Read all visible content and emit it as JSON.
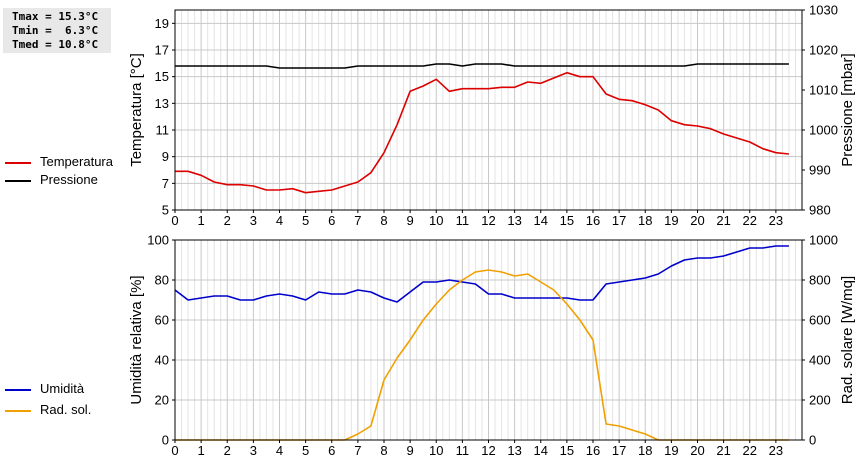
{
  "stats": [
    "Tmax = 15.3°C",
    "Tmin =  6.3°C",
    "Tmed = 10.8°C"
  ],
  "colors": {
    "temperature": "#dd0000",
    "pressure": "#000000",
    "humidity": "#0000cc",
    "radiation": "#f0a000",
    "grid": "#c8c8c8"
  },
  "legends": {
    "top": [
      {
        "name": "Temperatura",
        "color": "#dd0000"
      },
      {
        "name": "Pressione",
        "color": "#000000"
      }
    ],
    "bottom": [
      {
        "name": "Umidità",
        "color": "#0000cc"
      },
      {
        "name": "Rad. sol.",
        "color": "#f0a000"
      }
    ]
  },
  "chart_data": [
    {
      "type": "line",
      "x_ticks": [
        "0",
        "1",
        "2",
        "3",
        "4",
        "5",
        "6",
        "7",
        "8",
        "9",
        "10",
        "11",
        "12",
        "13",
        "14",
        "15",
        "16",
        "17",
        "18",
        "19",
        "20",
        "21",
        "22",
        "23"
      ],
      "xlim": [
        0,
        24
      ],
      "ylabel": "Temperatura [°C]",
      "ylim": [
        5,
        20
      ],
      "y_ticks": [
        5,
        7,
        9,
        11,
        13,
        15,
        17,
        19
      ],
      "y2label": "Pressione [mbar]",
      "y2lim": [
        980,
        1030
      ],
      "y2_ticks": [
        980,
        990,
        1000,
        1010,
        1020,
        1030
      ],
      "grid": true,
      "legend": "left",
      "series": [
        {
          "name": "Temperatura",
          "axis": "left",
          "x": [
            0,
            0.5,
            1,
            1.5,
            2,
            2.5,
            3,
            3.5,
            4,
            4.5,
            5,
            5.5,
            6,
            6.5,
            7,
            7.5,
            8,
            8.5,
            9,
            9.5,
            10,
            10.5,
            11,
            11.5,
            12,
            12.5,
            13,
            13.5,
            14,
            14.5,
            15,
            15.5,
            16,
            16.5,
            17,
            17.5,
            18,
            18.5,
            19,
            19.5,
            20,
            20.5,
            21,
            21.5,
            22,
            22.5,
            23,
            23.5
          ],
          "values": [
            7.9,
            7.9,
            7.6,
            7.1,
            6.9,
            6.9,
            6.8,
            6.5,
            6.5,
            6.6,
            6.3,
            6.4,
            6.5,
            6.8,
            7.1,
            7.8,
            9.3,
            11.4,
            13.9,
            14.3,
            14.8,
            13.9,
            14.1,
            14.1,
            14.1,
            14.2,
            14.2,
            14.6,
            14.5,
            14.9,
            15.3,
            15.0,
            15.0,
            13.7,
            13.3,
            13.2,
            12.9,
            12.5,
            11.7,
            11.4,
            11.3,
            11.1,
            10.7,
            10.4,
            10.1,
            9.6,
            9.3,
            9.2
          ]
        },
        {
          "name": "Pressione",
          "axis": "right",
          "x": [
            0,
            0.5,
            1,
            1.5,
            2,
            2.5,
            3,
            3.5,
            4,
            4.5,
            5,
            5.5,
            6,
            6.5,
            7,
            7.5,
            8,
            8.5,
            9,
            9.5,
            10,
            10.5,
            11,
            11.5,
            12,
            12.5,
            13,
            13.5,
            14,
            14.5,
            15,
            15.5,
            16,
            16.5,
            17,
            17.5,
            18,
            18.5,
            19,
            19.5,
            20,
            20.5,
            21,
            21.5,
            22,
            22.5,
            23,
            23.5
          ],
          "values": [
            1016,
            1016,
            1016,
            1016,
            1016,
            1016,
            1016,
            1016,
            1015.5,
            1015.5,
            1015.5,
            1015.5,
            1015.5,
            1015.5,
            1016,
            1016,
            1016,
            1016,
            1016,
            1016,
            1016.5,
            1016.5,
            1016,
            1016.5,
            1016.5,
            1016.5,
            1016,
            1016,
            1016,
            1016,
            1016,
            1016,
            1016,
            1016,
            1016,
            1016,
            1016,
            1016,
            1016,
            1016,
            1016.5,
            1016.5,
            1016.5,
            1016.5,
            1016.5,
            1016.5,
            1016.5,
            1016.5
          ]
        }
      ]
    },
    {
      "type": "line",
      "x_ticks": [
        "0",
        "1",
        "2",
        "3",
        "4",
        "5",
        "6",
        "7",
        "8",
        "9",
        "10",
        "11",
        "12",
        "13",
        "14",
        "15",
        "16",
        "17",
        "18",
        "19",
        "20",
        "21",
        "22",
        "23"
      ],
      "xlim": [
        0,
        24
      ],
      "ylabel": "Umidità relativa [%]",
      "ylim": [
        0,
        100
      ],
      "y_ticks": [
        0,
        20,
        40,
        60,
        80,
        100
      ],
      "y2label": "Rad. solare [W/mq]",
      "y2lim": [
        0,
        1000
      ],
      "y2_ticks": [
        0,
        200,
        400,
        600,
        800,
        1000
      ],
      "grid": true,
      "legend": "left",
      "series": [
        {
          "name": "Umidità",
          "axis": "left",
          "x": [
            0,
            0.5,
            1,
            1.5,
            2,
            2.5,
            3,
            3.5,
            4,
            4.5,
            5,
            5.5,
            6,
            6.5,
            7,
            7.5,
            8,
            8.5,
            9,
            9.5,
            10,
            10.5,
            11,
            11.5,
            12,
            12.5,
            13,
            13.5,
            14,
            14.5,
            15,
            15.5,
            16,
            16.5,
            17,
            17.5,
            18,
            18.5,
            19,
            19.5,
            20,
            20.5,
            21,
            21.5,
            22,
            22.5,
            23,
            23.5
          ],
          "values": [
            75,
            70,
            71,
            72,
            72,
            70,
            70,
            72,
            73,
            72,
            70,
            74,
            73,
            73,
            75,
            74,
            71,
            69,
            74,
            79,
            79,
            80,
            79,
            78,
            73,
            73,
            71,
            71,
            71,
            71,
            71,
            70,
            70,
            78,
            79,
            80,
            81,
            83,
            87,
            90,
            91,
            91,
            92,
            94,
            96,
            96,
            97,
            97
          ]
        },
        {
          "name": "Rad. sol.",
          "axis": "right",
          "x": [
            0,
            0.5,
            1,
            1.5,
            2,
            2.5,
            3,
            3.5,
            4,
            4.5,
            5,
            5.5,
            6,
            6.5,
            7,
            7.5,
            8,
            8.5,
            9,
            9.5,
            10,
            10.5,
            11,
            11.5,
            12,
            12.5,
            13,
            13.5,
            14,
            14.5,
            15,
            15.5,
            16,
            16.5,
            17,
            17.5,
            18,
            18.5,
            19,
            19.5,
            20,
            20.5,
            21,
            21.5,
            22,
            22.5,
            23,
            23.5
          ],
          "values": [
            0,
            0,
            0,
            0,
            0,
            0,
            0,
            0,
            0,
            0,
            0,
            0,
            0,
            0,
            30,
            70,
            300,
            410,
            500,
            600,
            680,
            750,
            800,
            840,
            850,
            840,
            820,
            830,
            790,
            750,
            680,
            600,
            500,
            80,
            70,
            50,
            30,
            0,
            0,
            0,
            0,
            0,
            0,
            0,
            0,
            0,
            0,
            0
          ]
        }
      ]
    }
  ]
}
